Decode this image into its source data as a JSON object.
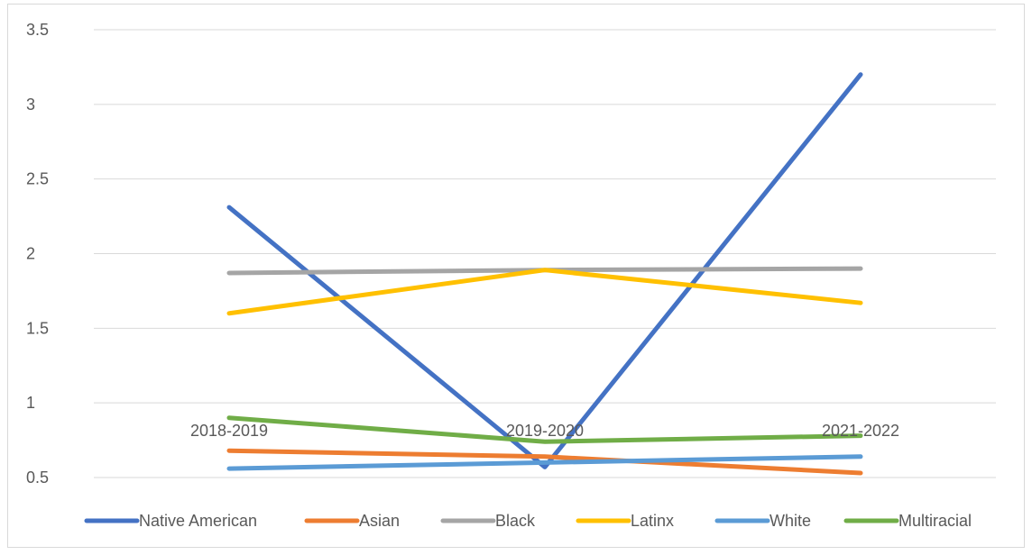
{
  "chart_data": {
    "type": "line",
    "categories": [
      "2018-2019",
      "2019-2020",
      "2021-2022"
    ],
    "yticks": [
      "0.5",
      "1",
      "1.5",
      "2",
      "2.5",
      "3",
      "3.5"
    ],
    "ylim": [
      0.5,
      3.5
    ],
    "grid": true,
    "legend_position": "bottom",
    "series": [
      {
        "name": "Native American",
        "color": "#4472C4",
        "values": [
          2.31,
          0.57,
          3.2
        ]
      },
      {
        "name": "Asian",
        "color": "#ED7D31",
        "values": [
          0.68,
          0.64,
          0.53
        ]
      },
      {
        "name": "Black",
        "color": "#A5A5A5",
        "values": [
          1.87,
          1.89,
          1.9
        ]
      },
      {
        "name": "Latinx",
        "color": "#FFC000",
        "values": [
          1.6,
          1.89,
          1.67
        ]
      },
      {
        "name": "White",
        "color": "#5B9BD5",
        "values": [
          0.56,
          0.6,
          0.64
        ]
      },
      {
        "name": "Multiracial",
        "color": "#70AD47",
        "values": [
          0.9,
          0.74,
          0.78
        ]
      }
    ]
  }
}
